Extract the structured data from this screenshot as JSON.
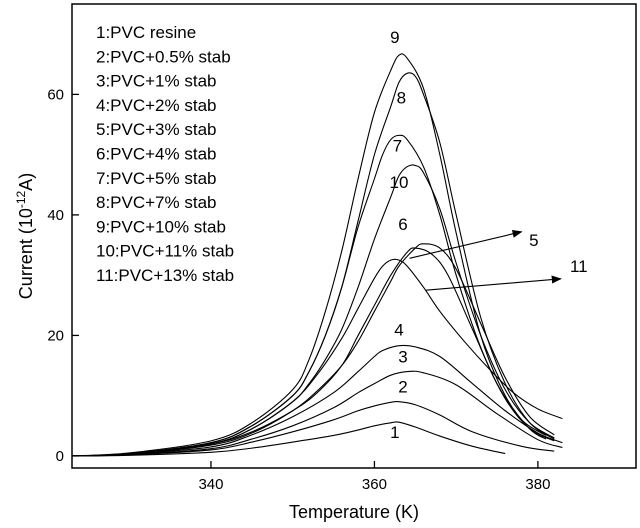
{
  "chart_data": {
    "type": "line",
    "title": "",
    "xlabel": "Temperature (K)",
    "ylabel_parts": [
      "Current (10",
      "-12",
      "A)"
    ],
    "xlim": [
      323,
      392
    ],
    "ylim": [
      -2,
      75
    ],
    "xticks": [
      340,
      360,
      380
    ],
    "yticks": [
      0,
      20,
      40,
      60
    ],
    "grid": false,
    "legend_position": "top-left",
    "legend": [
      "1:PVC resine",
      "2:PVC+0.5% stab",
      "3:PVC+1% stab",
      "4:PVC+2% stab",
      "5:PVC+3% stab",
      "6:PVC+4% stab",
      "7:PVC+5% stab",
      "8:PVC+7% stab",
      "9:PVC+10% stab",
      "10:PVC+11% stab",
      "11:PVC+13% stab"
    ],
    "series": [
      {
        "label": "1",
        "label_pos": [
          362.5,
          3.0
        ],
        "x": [
          323,
          330,
          340,
          345,
          350,
          355,
          358,
          360,
          362,
          363,
          365,
          368,
          372,
          376
        ],
        "y": [
          0,
          0.1,
          0.6,
          1.3,
          2.3,
          3.4,
          4.3,
          5.0,
          5.5,
          5.6,
          4.8,
          3.3,
          1.6,
          0.4
        ]
      },
      {
        "label": "2",
        "label_pos": [
          363.5,
          10.5
        ],
        "x": [
          323,
          330,
          340,
          345,
          350,
          355,
          358,
          360,
          362,
          363,
          365,
          368,
          372,
          378,
          382
        ],
        "y": [
          0,
          0.2,
          1.0,
          2.3,
          4.0,
          6.0,
          7.5,
          8.3,
          8.9,
          9.0,
          8.5,
          6.8,
          4.0,
          1.6,
          0.8
        ]
      },
      {
        "label": "3",
        "label_pos": [
          363.5,
          15.5
        ],
        "x": [
          323,
          330,
          340,
          345,
          350,
          355,
          358,
          360,
          362,
          364,
          366,
          370,
          375,
          380,
          383
        ],
        "y": [
          0,
          0.2,
          1.2,
          2.8,
          5.0,
          8.0,
          10.5,
          12.0,
          13.4,
          14.0,
          13.8,
          11.8,
          7.0,
          2.7,
          1.4
        ]
      },
      {
        "label": "4",
        "label_pos": [
          363,
          20.0
        ],
        "x": [
          323,
          330,
          340,
          345,
          350,
          355,
          358,
          360,
          361,
          363,
          365,
          368,
          372,
          376,
          380,
          383
        ],
        "y": [
          0,
          0.3,
          1.5,
          3.5,
          6.5,
          10.5,
          14.0,
          16.5,
          17.5,
          18.3,
          18.1,
          16.5,
          12.0,
          7.5,
          3.8,
          2.2
        ]
      },
      {
        "label": "5",
        "label_pos": [
          379.5,
          34.8
        ],
        "x": [
          323,
          330,
          340,
          345,
          350,
          353,
          356,
          358,
          360,
          362,
          364,
          365,
          367,
          369,
          372,
          375,
          378,
          381
        ],
        "y": [
          0,
          0.3,
          2.0,
          4.0,
          7.5,
          10.5,
          15.0,
          20.0,
          25.0,
          30.0,
          33.8,
          34.5,
          33.5,
          30.0,
          21.0,
          12.0,
          6.0,
          3.4
        ]
      },
      {
        "label": "6",
        "label_pos": [
          363.5,
          37.5
        ],
        "x": [
          323,
          330,
          340,
          345,
          350,
          353,
          356,
          358,
          360,
          362,
          363,
          365,
          366,
          368,
          370,
          373,
          376,
          379,
          382
        ],
        "y": [
          0,
          0.3,
          1.8,
          3.8,
          7.5,
          10.8,
          15.0,
          19.0,
          24.0,
          29.0,
          31.5,
          34.5,
          35.2,
          34.5,
          31.0,
          22.0,
          13.0,
          6.5,
          3.5
        ]
      },
      {
        "label": "7",
        "label_pos": [
          362.8,
          50.5
        ],
        "x": [
          323,
          330,
          340,
          345,
          350,
          352,
          354,
          356,
          358,
          360,
          361,
          362,
          363,
          364,
          366,
          368,
          370,
          373,
          376,
          379,
          382
        ],
        "y": [
          0,
          0.4,
          2.2,
          5.0,
          10.0,
          14.0,
          20.0,
          28.0,
          38.0,
          46.0,
          50.0,
          52.5,
          53.2,
          52.5,
          48.0,
          40.0,
          30.0,
          18.0,
          9.5,
          4.5,
          2.5
        ]
      },
      {
        "label": "8",
        "label_pos": [
          363.3,
          58.5
        ],
        "x": [
          323,
          330,
          340,
          345,
          350,
          352,
          354,
          356,
          358,
          360,
          362,
          363,
          364,
          365,
          366,
          368,
          370,
          373,
          376,
          379,
          382
        ],
        "y": [
          0,
          0.4,
          2.2,
          5.0,
          10.0,
          14.0,
          20.0,
          28.0,
          39.0,
          50.0,
          58.0,
          62.0,
          63.5,
          63.0,
          60.0,
          52.0,
          40.0,
          23.0,
          12.0,
          5.5,
          2.8
        ]
      },
      {
        "label": "9",
        "label_pos": [
          362.5,
          68.5
        ],
        "x": [
          323,
          330,
          340,
          345,
          350,
          352,
          354,
          356,
          358,
          360,
          362,
          363,
          364,
          366,
          368,
          370,
          373,
          376,
          379,
          381
        ],
        "y": [
          0,
          0.5,
          2.5,
          5.5,
          11.0,
          16.0,
          24.0,
          34.0,
          46.0,
          57.0,
          64.0,
          66.5,
          66.0,
          61.0,
          50.0,
          37.0,
          20.0,
          10.0,
          4.5,
          2.8
        ]
      },
      {
        "label": "10",
        "label_pos": [
          363,
          44.5
        ],
        "x": [
          323,
          330,
          340,
          345,
          350,
          352,
          354,
          356,
          358,
          360,
          362,
          363,
          364,
          365,
          366,
          368,
          370,
          373,
          376,
          379,
          382
        ],
        "y": [
          0,
          0.4,
          2.0,
          4.5,
          9.0,
          12.0,
          16.0,
          21.0,
          28.0,
          36.0,
          43.0,
          46.5,
          48.0,
          48.2,
          47.0,
          41.0,
          32.0,
          20.0,
          11.0,
          5.5,
          3.0
        ]
      },
      {
        "label": "11",
        "label_pos": [
          385,
          30.5
        ],
        "x": [
          323,
          330,
          340,
          345,
          350,
          353,
          356,
          358,
          360,
          361,
          362,
          363,
          364,
          366,
          368,
          371,
          374,
          377,
          380,
          383
        ],
        "y": [
          0,
          0.3,
          2.0,
          4.5,
          9.0,
          13.5,
          19.5,
          24.5,
          29.5,
          31.5,
          32.5,
          32.5,
          31.5,
          28.0,
          24.0,
          19.0,
          14.5,
          10.5,
          7.8,
          6.2
        ]
      }
    ],
    "arrows": [
      {
        "from": [
          364.3,
          32.8
        ],
        "to": [
          378,
          37.2
        ]
      },
      {
        "from": [
          366.3,
          27.5
        ],
        "to": [
          382.8,
          29.4
        ]
      }
    ]
  }
}
